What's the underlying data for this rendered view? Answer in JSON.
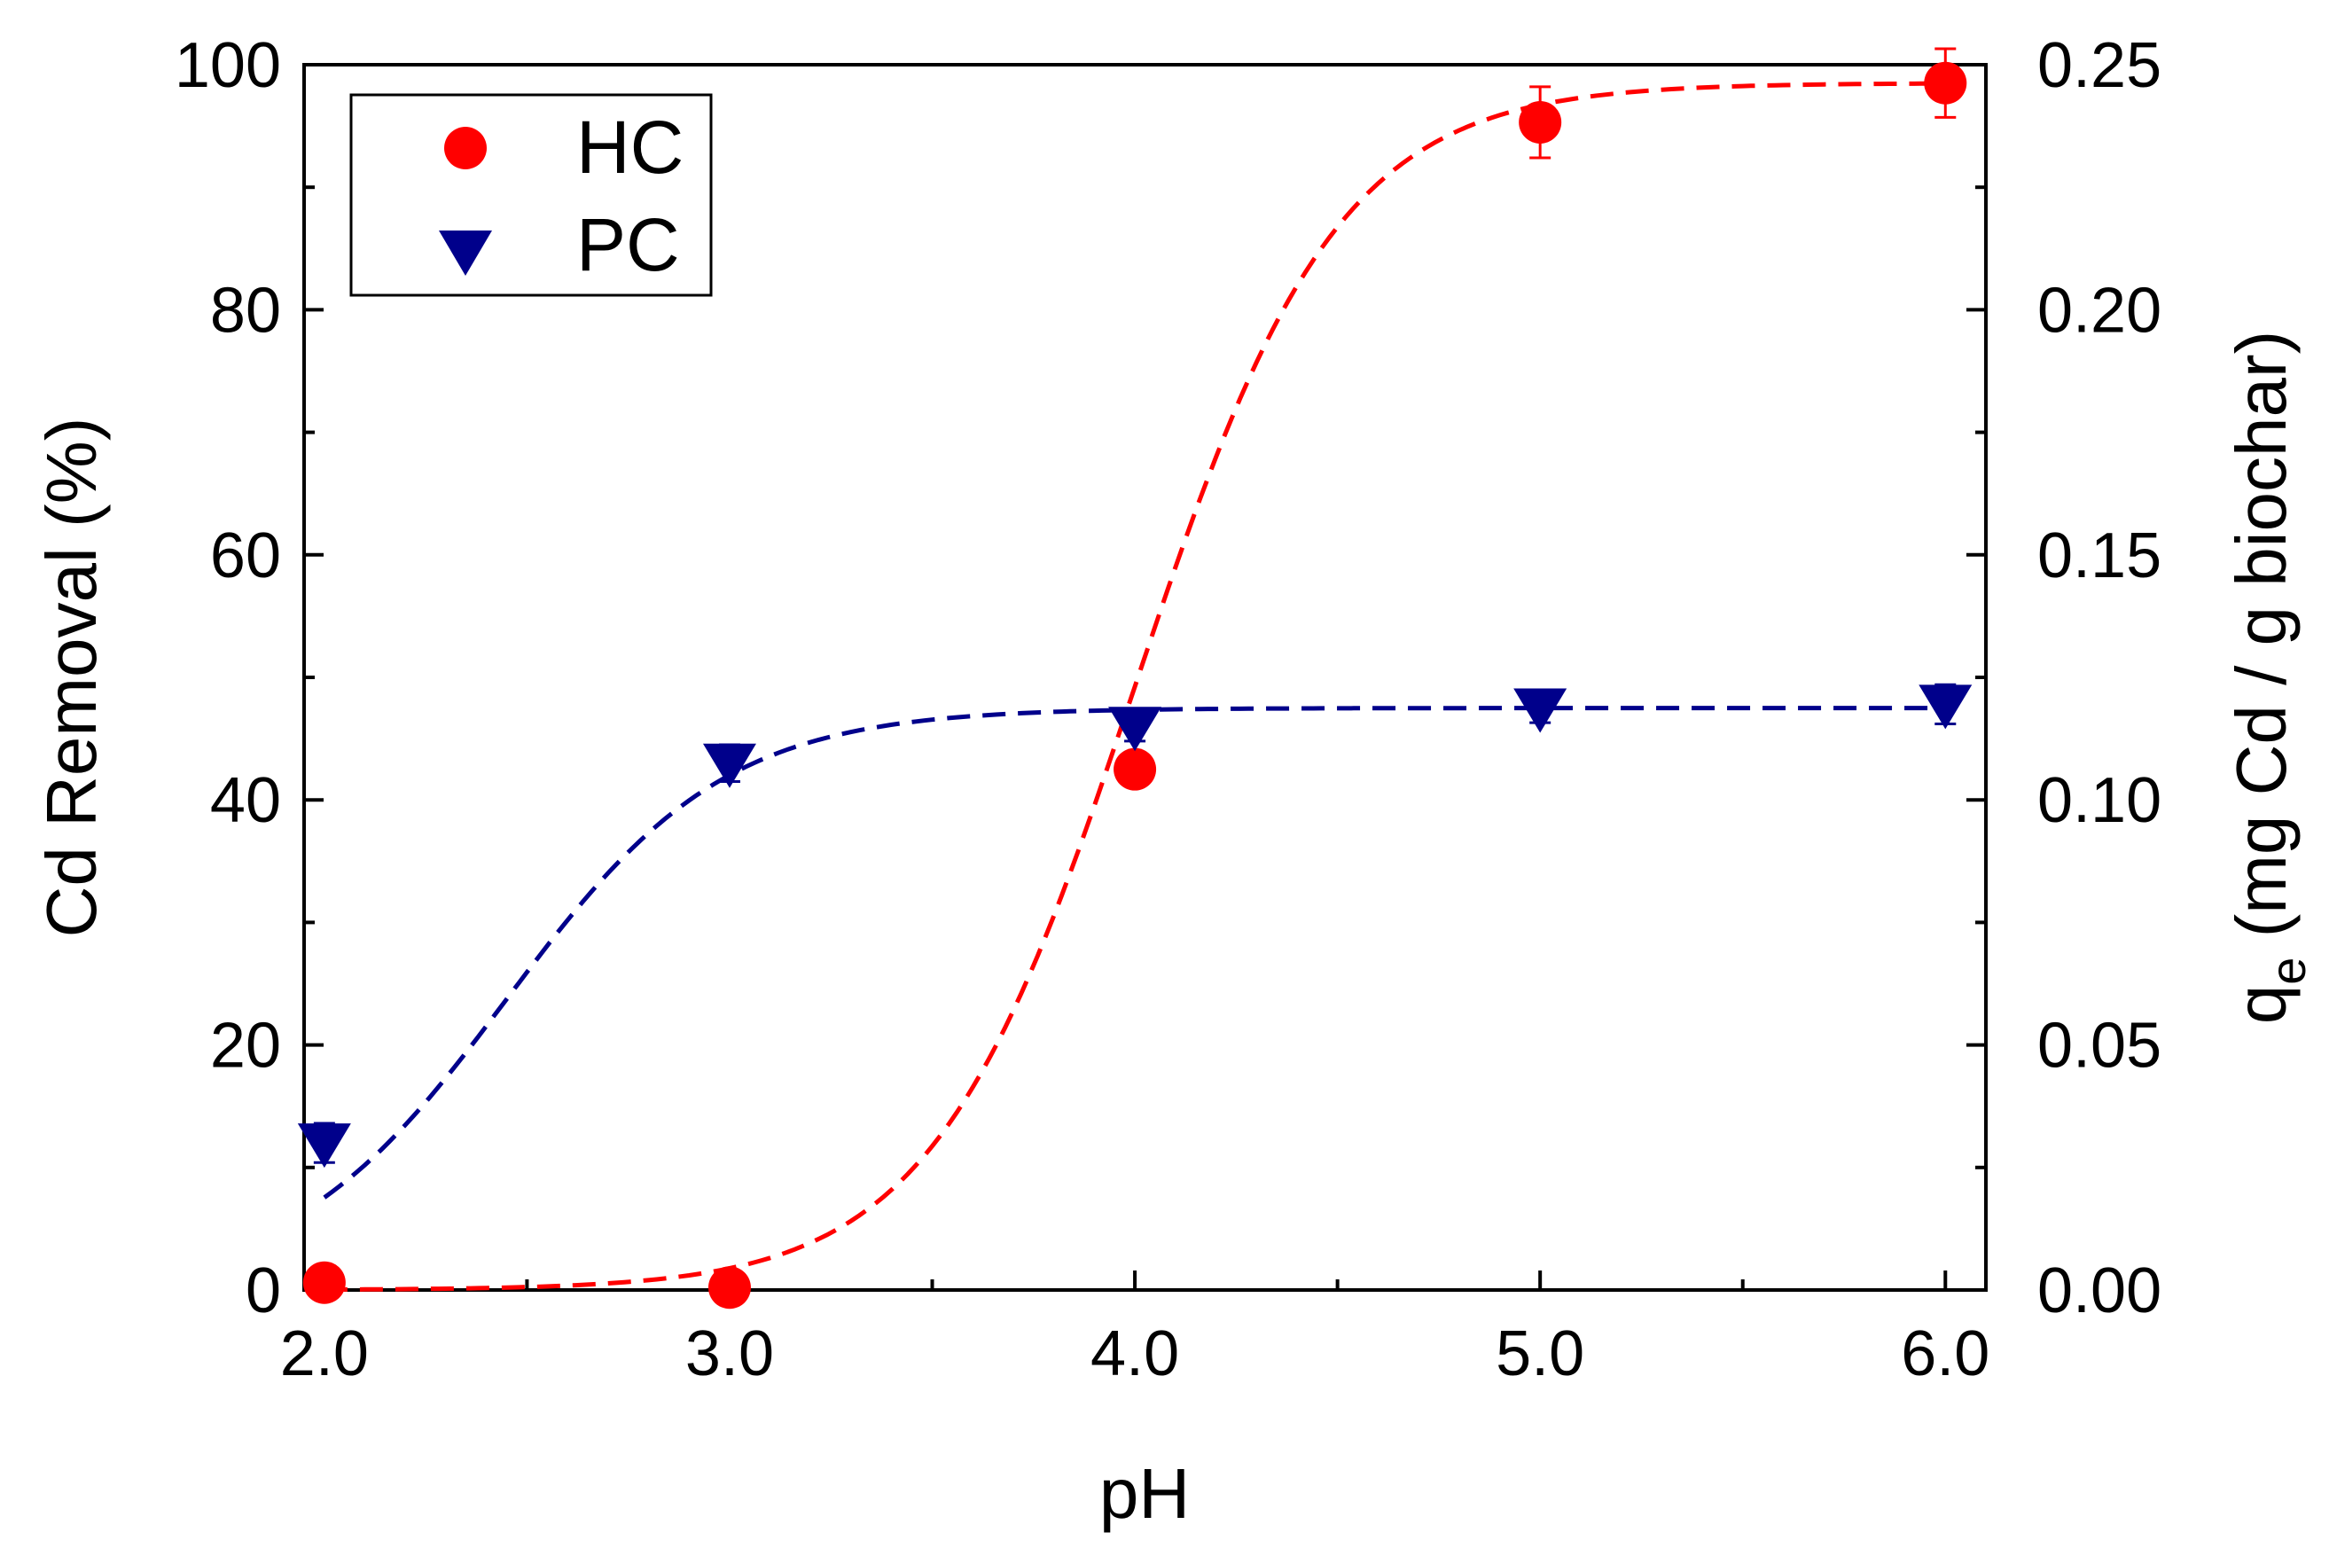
{
  "chart_data": {
    "type": "scatter",
    "xlabel": "pH",
    "ylabel": "Cd Removal (%)",
    "y2label_main": "q",
    "y2label_sub": "e",
    "y2label_rest": " (mg Cd / g biochar)",
    "xlim": [
      1.95,
      6.1
    ],
    "ylim": [
      0,
      100
    ],
    "y2lim": [
      0,
      0.25
    ],
    "xticks": [
      "2.0",
      "3.0",
      "4.0",
      "5.0",
      "6.0"
    ],
    "yticks": [
      "0",
      "20",
      "40",
      "60",
      "80",
      "100"
    ],
    "y2ticks": [
      "0.00",
      "0.05",
      "0.10",
      "0.15",
      "0.20",
      "0.25"
    ],
    "legend_position": "top-left",
    "series": [
      {
        "name": "HC",
        "marker": "circle",
        "color": "#ff0000",
        "x": [
          2.0,
          3.0,
          4.0,
          5.0,
          6.0
        ],
        "y": [
          0.6,
          0.2,
          42.5,
          95.3,
          98.5
        ],
        "err": [
          0.4,
          0.3,
          1.0,
          2.9,
          2.8
        ],
        "fit": {
          "style": "dashed",
          "model": "sigmoid",
          "top": 98.5,
          "mid": 4.0,
          "slope": 0.25
        }
      },
      {
        "name": "PC",
        "marker": "triangle-down",
        "color": "#00008b",
        "x": [
          2.0,
          3.0,
          4.0,
          5.0,
          6.0
        ],
        "y": [
          12.0,
          43.0,
          46.0,
          47.5,
          47.8
        ],
        "err": [
          1.6,
          1.5,
          1.2,
          1.2,
          1.6
        ],
        "fit": {
          "style": "dashed",
          "model": "sigmoid",
          "top": 47.5,
          "mid": 2.45,
          "slope": 0.27
        }
      }
    ]
  }
}
